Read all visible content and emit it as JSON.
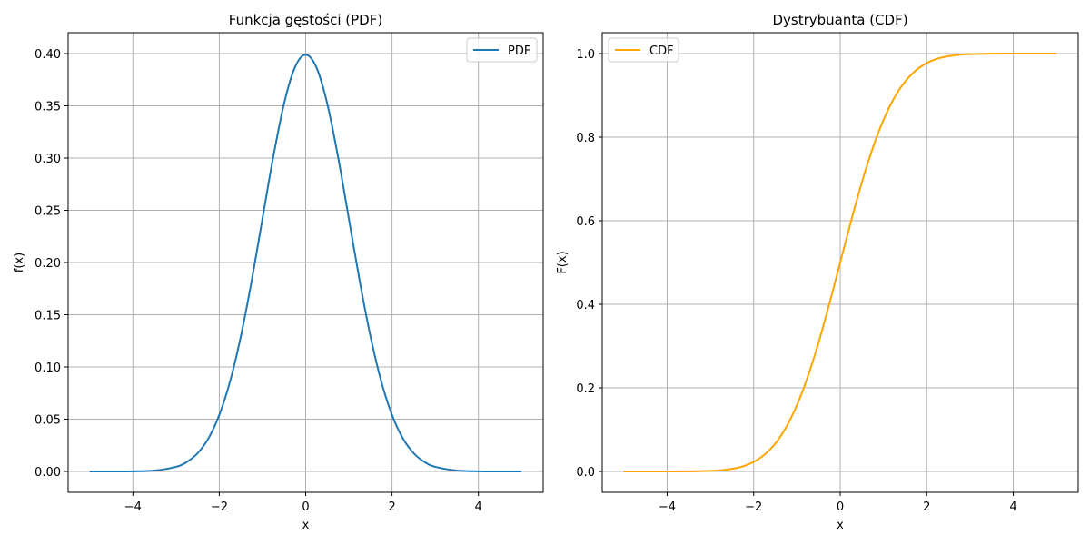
{
  "chart_data": [
    {
      "type": "line",
      "title": "Funkcja gęstości (PDF)",
      "xlabel": "x",
      "ylabel": "f(x)",
      "xlim": [
        -5.5,
        5.5
      ],
      "ylim": [
        -0.02,
        0.42
      ],
      "xticks": [
        -4,
        -2,
        0,
        2,
        4
      ],
      "xtick_labels": [
        "−4",
        "−2",
        "0",
        "2",
        "4"
      ],
      "yticks": [
        0.0,
        0.05,
        0.1,
        0.15,
        0.2,
        0.25,
        0.3,
        0.35,
        0.4
      ],
      "ytick_labels": [
        "0.00",
        "0.05",
        "0.10",
        "0.15",
        "0.20",
        "0.25",
        "0.30",
        "0.35",
        "0.40"
      ],
      "grid": true,
      "legend_position": "upper-right",
      "series": [
        {
          "name": "PDF",
          "color": "#1f77b4",
          "x": [
            -5.0,
            -4.5,
            -4.0,
            -3.5,
            -3.0,
            -2.75,
            -2.5,
            -2.25,
            -2.0,
            -1.75,
            -1.5,
            -1.25,
            -1.0,
            -0.75,
            -0.5,
            -0.25,
            0.0,
            0.25,
            0.5,
            0.75,
            1.0,
            1.25,
            1.5,
            1.75,
            2.0,
            2.25,
            2.5,
            2.75,
            3.0,
            3.5,
            4.0,
            4.5,
            5.0
          ],
          "y": [
            0.0,
            0.0,
            0.0001,
            0.0009,
            0.0044,
            0.0091,
            0.0175,
            0.0317,
            0.054,
            0.0863,
            0.1295,
            0.1826,
            0.242,
            0.3011,
            0.3521,
            0.3867,
            0.3989,
            0.3867,
            0.3521,
            0.3011,
            0.242,
            0.1826,
            0.1295,
            0.0863,
            0.054,
            0.0317,
            0.0175,
            0.0091,
            0.0044,
            0.0009,
            0.0001,
            0.0,
            0.0
          ]
        }
      ]
    },
    {
      "type": "line",
      "title": "Dystrybuanta (CDF)",
      "xlabel": "x",
      "ylabel": "F(x)",
      "xlim": [
        -5.5,
        5.5
      ],
      "ylim": [
        -0.05,
        1.05
      ],
      "xticks": [
        -4,
        -2,
        0,
        2,
        4
      ],
      "xtick_labels": [
        "−4",
        "−2",
        "0",
        "2",
        "4"
      ],
      "yticks": [
        0.0,
        0.2,
        0.4,
        0.6,
        0.8,
        1.0
      ],
      "ytick_labels": [
        "0.0",
        "0.2",
        "0.4",
        "0.6",
        "0.8",
        "1.0"
      ],
      "grid": true,
      "legend_position": "upper-left",
      "series": [
        {
          "name": "CDF",
          "color": "#ffa500",
          "x": [
            -5.0,
            -4.5,
            -4.0,
            -3.5,
            -3.0,
            -2.75,
            -2.5,
            -2.25,
            -2.0,
            -1.75,
            -1.5,
            -1.25,
            -1.0,
            -0.75,
            -0.5,
            -0.25,
            0.0,
            0.25,
            0.5,
            0.75,
            1.0,
            1.25,
            1.5,
            1.75,
            2.0,
            2.25,
            2.5,
            2.75,
            3.0,
            3.5,
            4.0,
            4.5,
            5.0
          ],
          "y": [
            0.0,
            0.0,
            0.0,
            0.0002,
            0.0013,
            0.003,
            0.0062,
            0.0122,
            0.0228,
            0.0401,
            0.0668,
            0.1056,
            0.1587,
            0.2266,
            0.3085,
            0.4013,
            0.5,
            0.5987,
            0.6915,
            0.7734,
            0.8413,
            0.8944,
            0.9332,
            0.9599,
            0.9772,
            0.9878,
            0.9938,
            0.997,
            0.9987,
            0.9998,
            1.0,
            1.0,
            1.0
          ]
        }
      ]
    }
  ]
}
